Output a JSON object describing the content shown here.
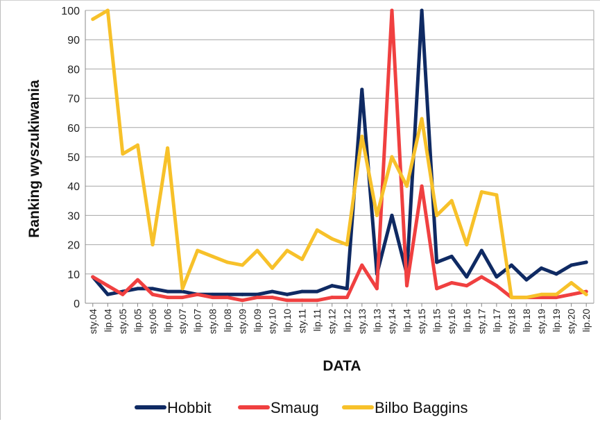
{
  "chart_data": {
    "type": "line",
    "title": "",
    "xlabel": "DATA",
    "ylabel": "Ranking wyszukiwania",
    "ylim": [
      0,
      100
    ],
    "yticks": [
      0,
      10,
      20,
      30,
      40,
      50,
      60,
      70,
      80,
      90,
      100
    ],
    "grid": true,
    "legend_position": "bottom",
    "x_tick_labels": [
      "sty.04",
      "lip.04",
      "sty.05",
      "lip.05",
      "sty.06",
      "lip.06",
      "sty.07",
      "lip.07",
      "sty.08",
      "lip.08",
      "sty.09",
      "lip.09",
      "sty.10",
      "lip.10",
      "sty.11",
      "lip.11",
      "sty.12",
      "lip.12",
      "sty.13",
      "lip.13",
      "sty.14",
      "lip.14",
      "sty.15",
      "lip.15",
      "sty.16",
      "lip.16",
      "sty.17",
      "lip.17",
      "sty.18",
      "lip.18",
      "sty.19",
      "lip.19",
      "sty.20",
      "lip.20"
    ],
    "series": [
      {
        "name": "Hobbit",
        "color": "#0f2a63",
        "x": [
          "sty.04",
          "lip.04",
          "sty.05",
          "lip.05",
          "sty.06",
          "lip.06",
          "sty.07",
          "lip.07",
          "sty.08",
          "lip.08",
          "sty.09",
          "lip.09",
          "sty.10",
          "lip.10",
          "sty.11",
          "lip.11",
          "sty.12",
          "lip.12",
          "sty.13",
          "lip.13",
          "sty.14",
          "lip.14",
          "sty.15",
          "lip.15",
          "sty.16",
          "lip.16",
          "sty.17",
          "lip.17",
          "sty.18",
          "lip.18",
          "sty.19",
          "lip.19",
          "sty.20",
          "lip.20"
        ],
        "values": [
          9,
          3,
          4,
          5,
          5,
          4,
          4,
          3,
          3,
          3,
          3,
          3,
          4,
          3,
          4,
          4,
          6,
          5,
          73,
          10,
          30,
          10,
          100,
          14,
          16,
          9,
          18,
          9,
          13,
          8,
          12,
          10,
          13,
          14
        ]
      },
      {
        "name": "Smaug",
        "color": "#f04040",
        "x": [
          "sty.04",
          "lip.04",
          "sty.05",
          "lip.05",
          "sty.06",
          "lip.06",
          "sty.07",
          "lip.07",
          "sty.08",
          "lip.08",
          "sty.09",
          "lip.09",
          "sty.10",
          "lip.10",
          "sty.11",
          "lip.11",
          "sty.12",
          "lip.12",
          "sty.13",
          "lip.13",
          "sty.14",
          "lip.14",
          "sty.15",
          "lip.15",
          "sty.16",
          "lip.16",
          "sty.17",
          "lip.17",
          "sty.18",
          "lip.18",
          "sty.19",
          "lip.19",
          "sty.20",
          "lip.20"
        ],
        "values": [
          9,
          6,
          3,
          8,
          3,
          2,
          2,
          3,
          2,
          2,
          1,
          2,
          2,
          1,
          1,
          1,
          2,
          2,
          13,
          5,
          100,
          6,
          40,
          5,
          7,
          6,
          9,
          6,
          2,
          2,
          2,
          2,
          3,
          4
        ]
      },
      {
        "name": "Bilbo Baggins",
        "color": "#f7c12a",
        "x": [
          "sty.04",
          "lip.04",
          "sty.05",
          "lip.05",
          "sty.06",
          "lip.06",
          "sty.07",
          "lip.07",
          "sty.08",
          "lip.08",
          "sty.09",
          "lip.09",
          "sty.10",
          "lip.10",
          "sty.11",
          "lip.11",
          "sty.12",
          "lip.12",
          "sty.13",
          "lip.13",
          "sty.14",
          "lip.14",
          "sty.15",
          "lip.15",
          "sty.16",
          "lip.16",
          "sty.17",
          "lip.17",
          "sty.18",
          "lip.18",
          "sty.19",
          "lip.19",
          "sty.20",
          "lip.20"
        ],
        "values": [
          97,
          100,
          51,
          54,
          20,
          53,
          5,
          18,
          16,
          14,
          13,
          18,
          12,
          18,
          15,
          25,
          22,
          20,
          57,
          30,
          50,
          40,
          63,
          30,
          35,
          20,
          38,
          37,
          2,
          2,
          3,
          3,
          7,
          3
        ]
      }
    ]
  }
}
